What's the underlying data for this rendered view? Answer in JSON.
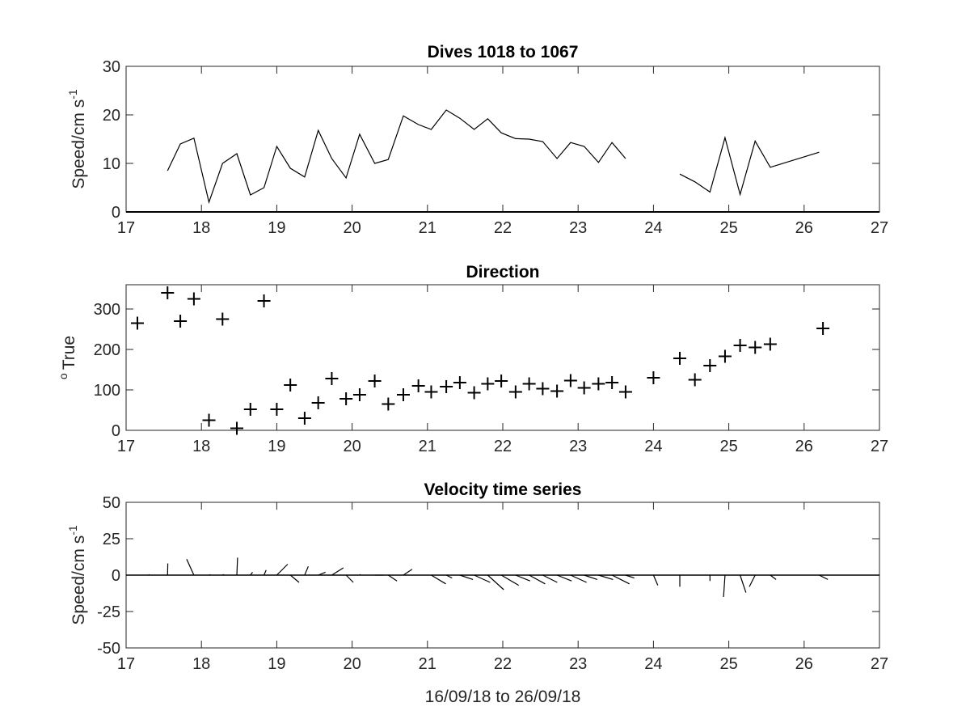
{
  "chart_data": [
    {
      "type": "line",
      "title": "Dives 1018 to 1067",
      "xlabel": "",
      "ylabel": "Speed/cm s",
      "ylabel_exponent": "-1",
      "xlim": [
        17,
        27
      ],
      "ylim": [
        0,
        30
      ],
      "xticks": [
        17,
        18,
        19,
        20,
        21,
        22,
        23,
        24,
        25,
        26,
        27
      ],
      "yticks": [
        0,
        10,
        20,
        30
      ],
      "color": "#000000",
      "series": [
        {
          "segments": [
            {
              "x": [
                17.55,
                17.72,
                17.9,
                18.1,
                18.28,
                18.47,
                18.65,
                18.83,
                19.0,
                19.18,
                19.37,
                19.55,
                19.73,
                19.92,
                20.1,
                20.3,
                20.48,
                20.68,
                20.88,
                21.05,
                21.25,
                21.43,
                21.62,
                21.8,
                21.98,
                22.17,
                22.35,
                22.53,
                22.72,
                22.9,
                23.08,
                23.27,
                23.45,
                23.63
              ],
              "y": [
                8.5,
                14,
                15.2,
                2,
                10,
                12,
                3.5,
                5,
                13.5,
                9,
                7.2,
                16.8,
                11,
                7,
                16,
                10,
                10.8,
                19.8,
                18,
                17,
                21,
                19.3,
                17,
                19.2,
                16.3,
                15.1,
                15,
                14.5,
                11,
                14.3,
                13.5,
                10.2,
                14.3,
                11
              ]
            },
            {
              "x": [
                24.35,
                24.55,
                24.75,
                24.95,
                25.15,
                25.35,
                25.55,
                26.2
              ],
              "y": [
                7.8,
                6.2,
                4.1,
                15.3,
                3.6,
                14.6,
                9.2,
                12.3
              ]
            }
          ]
        }
      ]
    },
    {
      "type": "scatter",
      "title": "Direction",
      "xlabel": "",
      "ylabel": "True",
      "ylabel_prefix": "o",
      "xlim": [
        17,
        27
      ],
      "ylim": [
        0,
        360
      ],
      "xticks": [
        17,
        18,
        19,
        20,
        21,
        22,
        23,
        24,
        25,
        26,
        27
      ],
      "yticks": [
        0,
        100,
        200,
        300
      ],
      "marker": "+",
      "color": "#000000",
      "x": [
        17.15,
        17.55,
        17.72,
        17.9,
        18.1,
        18.28,
        18.47,
        18.65,
        18.83,
        19.0,
        19.18,
        19.37,
        19.55,
        19.73,
        19.92,
        20.1,
        20.3,
        20.48,
        20.68,
        20.88,
        21.05,
        21.25,
        21.43,
        21.62,
        21.8,
        21.98,
        22.17,
        22.35,
        22.53,
        22.72,
        22.9,
        23.08,
        23.27,
        23.45,
        23.63,
        24.0,
        24.35,
        24.55,
        24.75,
        24.95,
        25.15,
        25.35,
        25.55,
        26.25
      ],
      "y": [
        265,
        340,
        270,
        325,
        25,
        275,
        5,
        52,
        320,
        52,
        112,
        30,
        68,
        128,
        78,
        88,
        122,
        65,
        88,
        110,
        95,
        108,
        118,
        93,
        115,
        122,
        95,
        115,
        103,
        97,
        123,
        105,
        115,
        118,
        95,
        130,
        178,
        125,
        160,
        183,
        210,
        205,
        213,
        252
      ]
    },
    {
      "type": "line",
      "subtype": "vector-sticks",
      "title": "Velocity time series",
      "xlabel": "16/09/18 to 26/09/18",
      "ylabel": "Speed/cm s",
      "ylabel_exponent": "-1",
      "xlim": [
        17,
        27
      ],
      "ylim": [
        -50,
        50
      ],
      "xticks": [
        17,
        18,
        19,
        20,
        21,
        22,
        23,
        24,
        25,
        26,
        27
      ],
      "yticks": [
        50,
        25,
        0,
        -25,
        -50
      ],
      "color": "#000000",
      "sticks": [
        {
          "x": 17.3,
          "u": 0.3,
          "v": 0.5
        },
        {
          "x": 17.55,
          "u": 0.2,
          "v": 8
        },
        {
          "x": 17.9,
          "u": -5,
          "v": 11
        },
        {
          "x": 18.1,
          "u": 1,
          "v": 0.3
        },
        {
          "x": 18.28,
          "u": 1,
          "v": 0.5
        },
        {
          "x": 18.47,
          "u": 0.5,
          "v": 12
        },
        {
          "x": 18.65,
          "u": 1.5,
          "v": 2
        },
        {
          "x": 18.83,
          "u": 1.5,
          "v": 3.5
        },
        {
          "x": 19.0,
          "u": 7.5,
          "v": 7.5
        },
        {
          "x": 19.18,
          "u": 6,
          "v": -5
        },
        {
          "x": 19.37,
          "u": 2.5,
          "v": 6
        },
        {
          "x": 19.55,
          "u": 5,
          "v": 2
        },
        {
          "x": 19.73,
          "u": 8,
          "v": 5
        },
        {
          "x": 19.92,
          "u": 5,
          "v": -5
        },
        {
          "x": 20.1,
          "u": 0.5,
          "v": 0.5
        },
        {
          "x": 20.3,
          "u": 6,
          "v": 0
        },
        {
          "x": 20.48,
          "u": 6,
          "v": -4
        },
        {
          "x": 20.68,
          "u": 6,
          "v": 4
        },
        {
          "x": 20.88,
          "u": 0,
          "v": 0
        },
        {
          "x": 21.05,
          "u": 10,
          "v": -6
        },
        {
          "x": 21.25,
          "u": 4,
          "v": -2
        },
        {
          "x": 21.43,
          "u": 9,
          "v": -3
        },
        {
          "x": 21.62,
          "u": 11,
          "v": -5
        },
        {
          "x": 21.8,
          "u": 11,
          "v": -10
        },
        {
          "x": 21.98,
          "u": 12,
          "v": -7
        },
        {
          "x": 22.17,
          "u": 10,
          "v": -4
        },
        {
          "x": 22.35,
          "u": 11,
          "v": -6
        },
        {
          "x": 22.53,
          "u": 10,
          "v": -5
        },
        {
          "x": 22.72,
          "u": 10,
          "v": -4
        },
        {
          "x": 22.9,
          "u": 11,
          "v": -5
        },
        {
          "x": 23.08,
          "u": 9,
          "v": -3
        },
        {
          "x": 23.27,
          "u": 10,
          "v": -3
        },
        {
          "x": 23.45,
          "u": 12,
          "v": -6
        },
        {
          "x": 23.63,
          "u": 6,
          "v": -2
        },
        {
          "x": 24.0,
          "u": 3,
          "v": -7
        },
        {
          "x": 24.35,
          "u": 0,
          "v": -8
        },
        {
          "x": 24.75,
          "u": 0,
          "v": -4
        },
        {
          "x": 24.95,
          "u": -1,
          "v": -15
        },
        {
          "x": 25.15,
          "u": 4,
          "v": -12
        },
        {
          "x": 25.35,
          "u": -4,
          "v": -8
        },
        {
          "x": 25.55,
          "u": 4,
          "v": -3
        },
        {
          "x": 26.2,
          "u": 6,
          "v": -3
        }
      ]
    }
  ]
}
